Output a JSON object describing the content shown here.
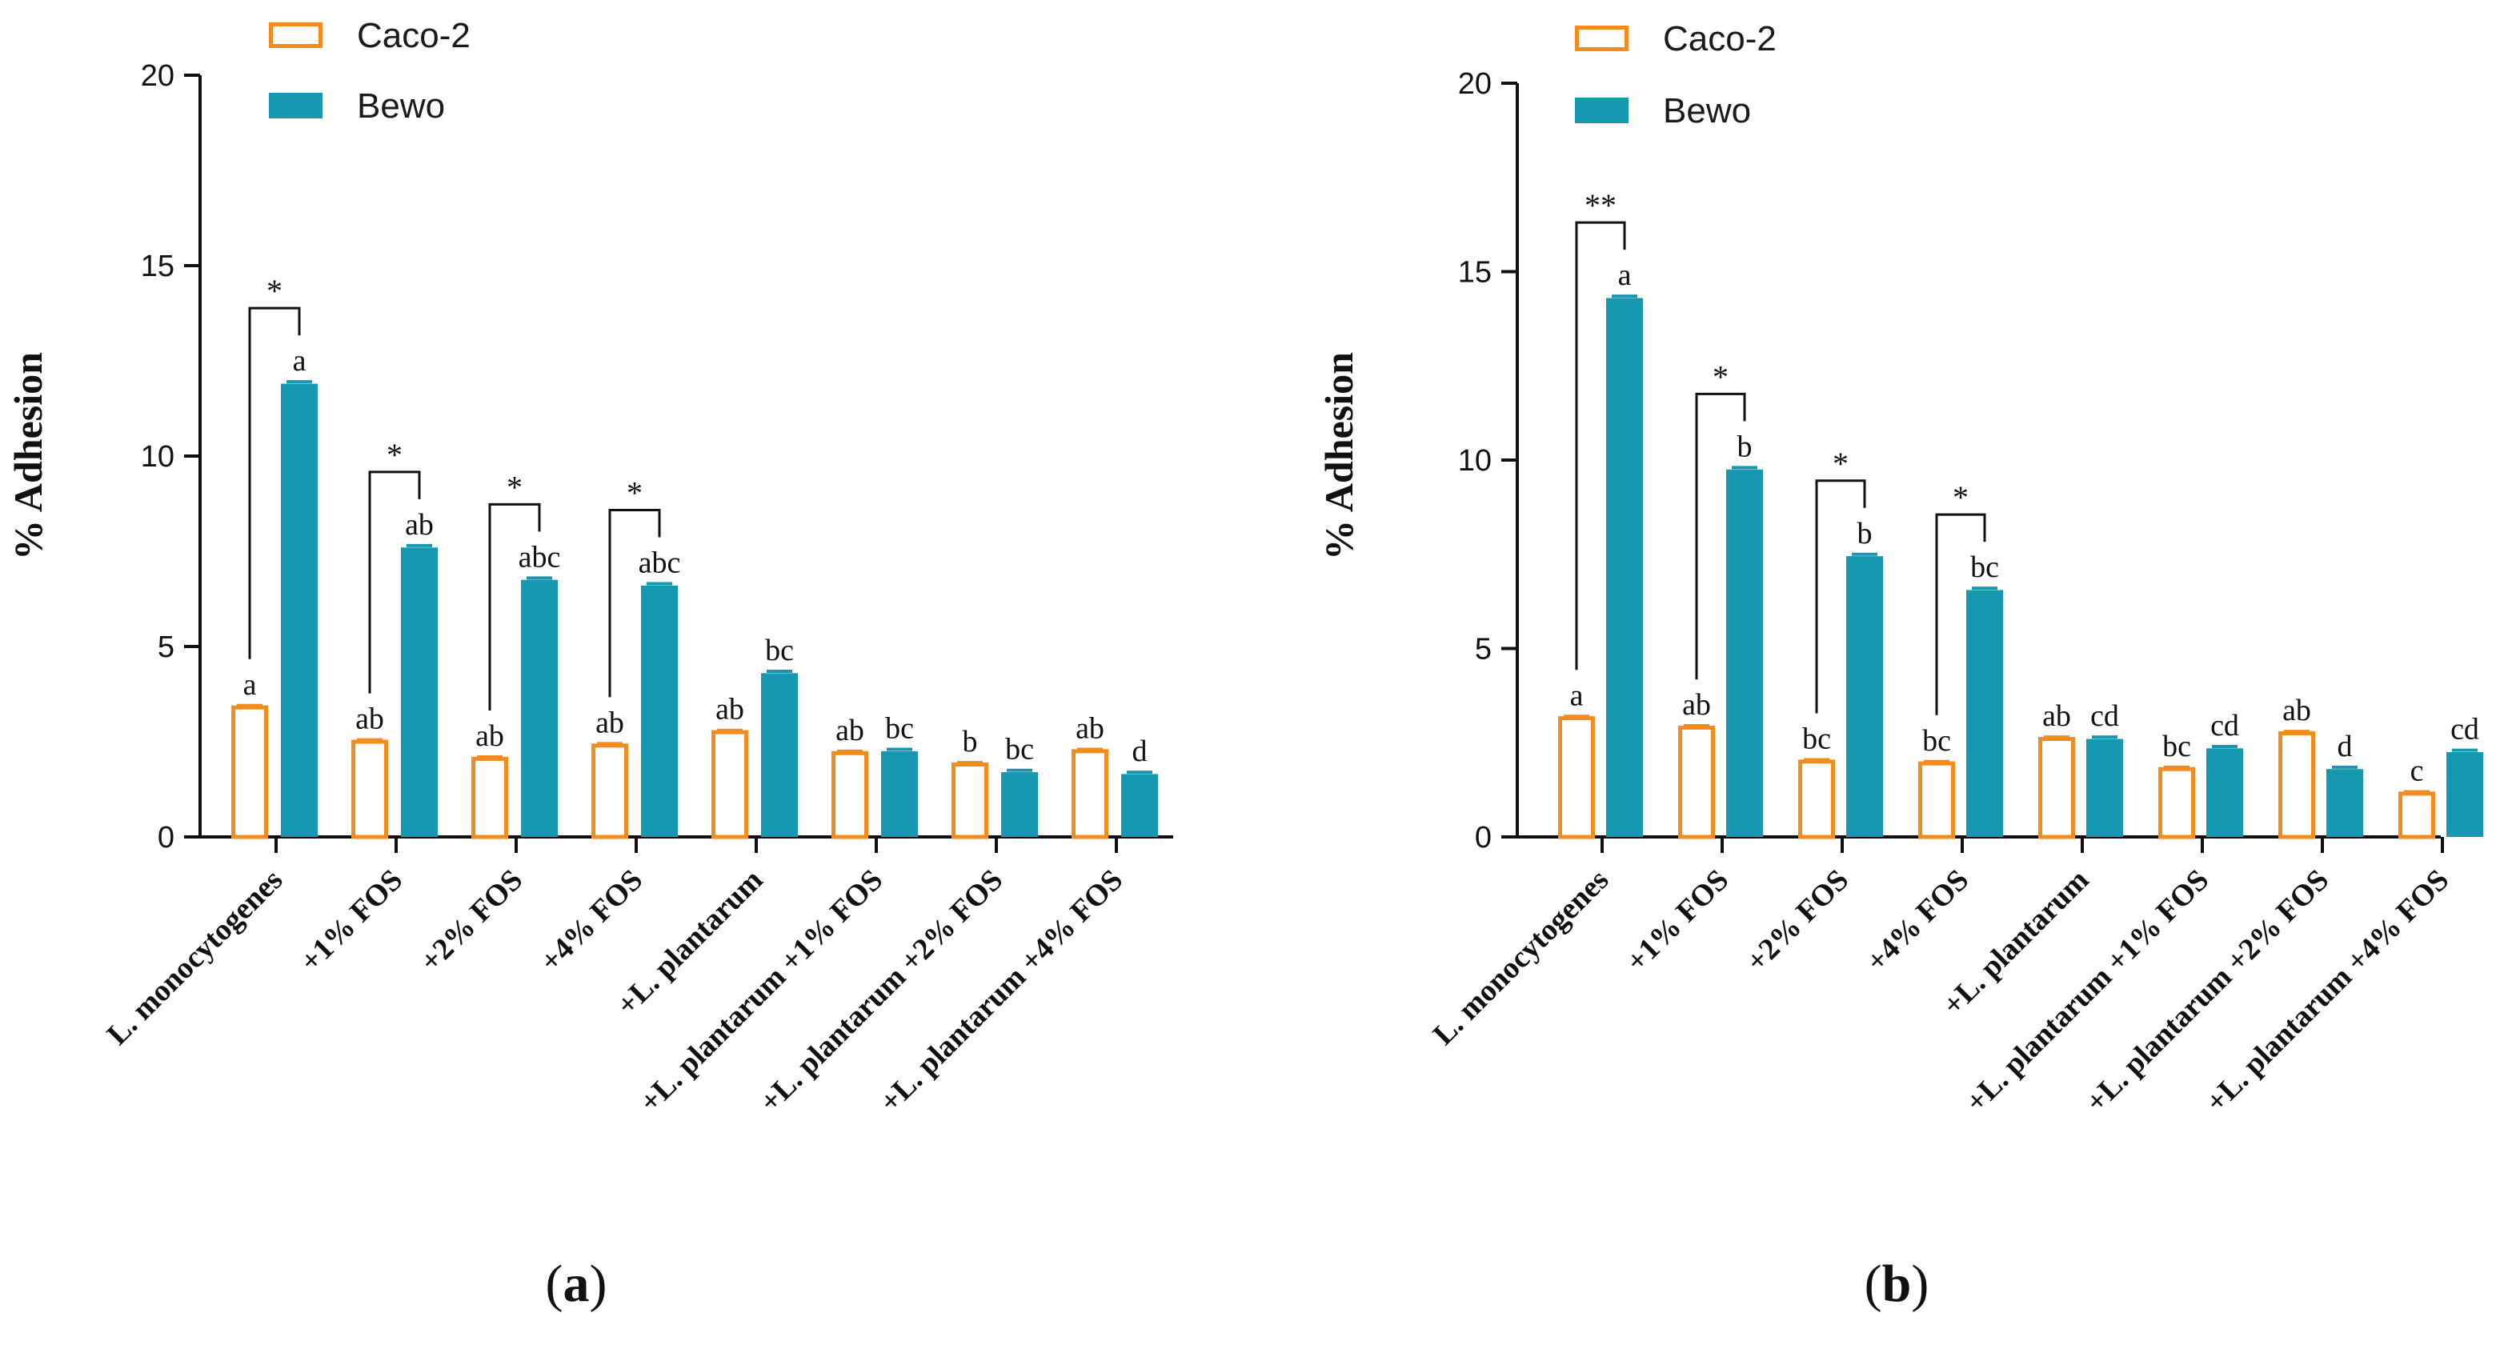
{
  "chart_data": [
    {
      "type": "bar",
      "panel_label": "(a)",
      "panel_label_parts": [
        "(",
        "a",
        ")"
      ],
      "ylabel": "% Adhesion",
      "ylim": [
        0,
        20
      ],
      "yticks": [
        0,
        5,
        10,
        15,
        20
      ],
      "yticks_label": [
        "0",
        "5",
        "10",
        "15",
        "20"
      ],
      "categories": [
        "L. monocytogenes",
        "+1% FOS",
        "+2% FOS",
        "+4% FOS",
        "+L. plantarum",
        "+L. plantarum +1% FOS",
        "+L. plantarum +2% FOS",
        "+L. plantarum +4% FOS"
      ],
      "series": [
        {
          "name": "Caco-2",
          "style": "outline",
          "color": "#F28C1C",
          "values": [
            3.4,
            2.5,
            2.05,
            2.4,
            2.75,
            2.2,
            1.9,
            2.25
          ],
          "errors": [
            0.05,
            0.05,
            0.05,
            0.05,
            0.05,
            0.05,
            0.05,
            0.05
          ],
          "letters": [
            "a",
            "ab",
            "ab",
            "ab",
            "ab",
            "ab",
            "b",
            "ab"
          ]
        },
        {
          "name": "Bewo",
          "style": "filled",
          "color": "#1699B0",
          "values": [
            11.9,
            7.6,
            6.75,
            6.6,
            4.3,
            2.25,
            1.7,
            1.65
          ],
          "errors": [
            0.05,
            0.05,
            0.05,
            0.05,
            0.05,
            0.05,
            0.05,
            0.05
          ],
          "letters": [
            "a",
            "ab",
            "abc",
            "abc",
            "bc",
            "bc",
            "bc",
            "d"
          ]
        }
      ],
      "significance": [
        {
          "category_index": 0,
          "label": "*"
        },
        {
          "category_index": 1,
          "label": "*"
        },
        {
          "category_index": 2,
          "label": "*"
        },
        {
          "category_index": 3,
          "label": "*"
        }
      ],
      "legend": [
        "Caco-2",
        "Bewo"
      ]
    },
    {
      "type": "bar",
      "panel_label": "(b)",
      "panel_label_parts": [
        "(",
        "b",
        ")"
      ],
      "ylabel": "% Adhesion",
      "ylim": [
        0,
        20
      ],
      "yticks": [
        0,
        5,
        10,
        15,
        20
      ],
      "yticks_label": [
        "0",
        "5",
        "10",
        "15",
        "20"
      ],
      "categories": [
        "L. monocytogenes",
        "+1% FOS",
        "+2% FOS",
        "+4% FOS",
        "+L. plantarum",
        "+L. plantarum +1% FOS",
        "+L. plantarum +2% FOS",
        "+L. plantarum +4% FOS"
      ],
      "series": [
        {
          "name": "Caco-2",
          "style": "outline",
          "color": "#F28C1C",
          "values": [
            3.15,
            2.9,
            2.0,
            1.95,
            2.6,
            1.8,
            2.75,
            1.15
          ],
          "errors": [
            0.05,
            0.05,
            0.05,
            0.05,
            0.05,
            0.05,
            0.05,
            0.05
          ],
          "letters": [
            "a",
            "ab",
            "bc",
            "bc",
            "ab",
            "bc",
            "ab",
            "c"
          ]
        },
        {
          "name": "Bewo",
          "style": "filled",
          "color": "#1699B0",
          "values": [
            14.3,
            9.75,
            7.45,
            6.55,
            2.6,
            2.35,
            1.8,
            2.25
          ],
          "errors": [
            0.05,
            0.05,
            0.05,
            0.05,
            0.05,
            0.05,
            0.05,
            0.05
          ],
          "letters": [
            "a",
            "b",
            "b",
            "bc",
            "cd",
            "cd",
            "d",
            "cd"
          ]
        }
      ],
      "significance": [
        {
          "category_index": 0,
          "label": "**"
        },
        {
          "category_index": 1,
          "label": "*"
        },
        {
          "category_index": 2,
          "label": "*"
        },
        {
          "category_index": 3,
          "label": "*"
        }
      ],
      "legend": [
        "Caco-2",
        "Bewo"
      ]
    }
  ],
  "colors": {
    "caco2": "#F28C1C",
    "bewo": "#1699B0",
    "axis": "#111111"
  }
}
